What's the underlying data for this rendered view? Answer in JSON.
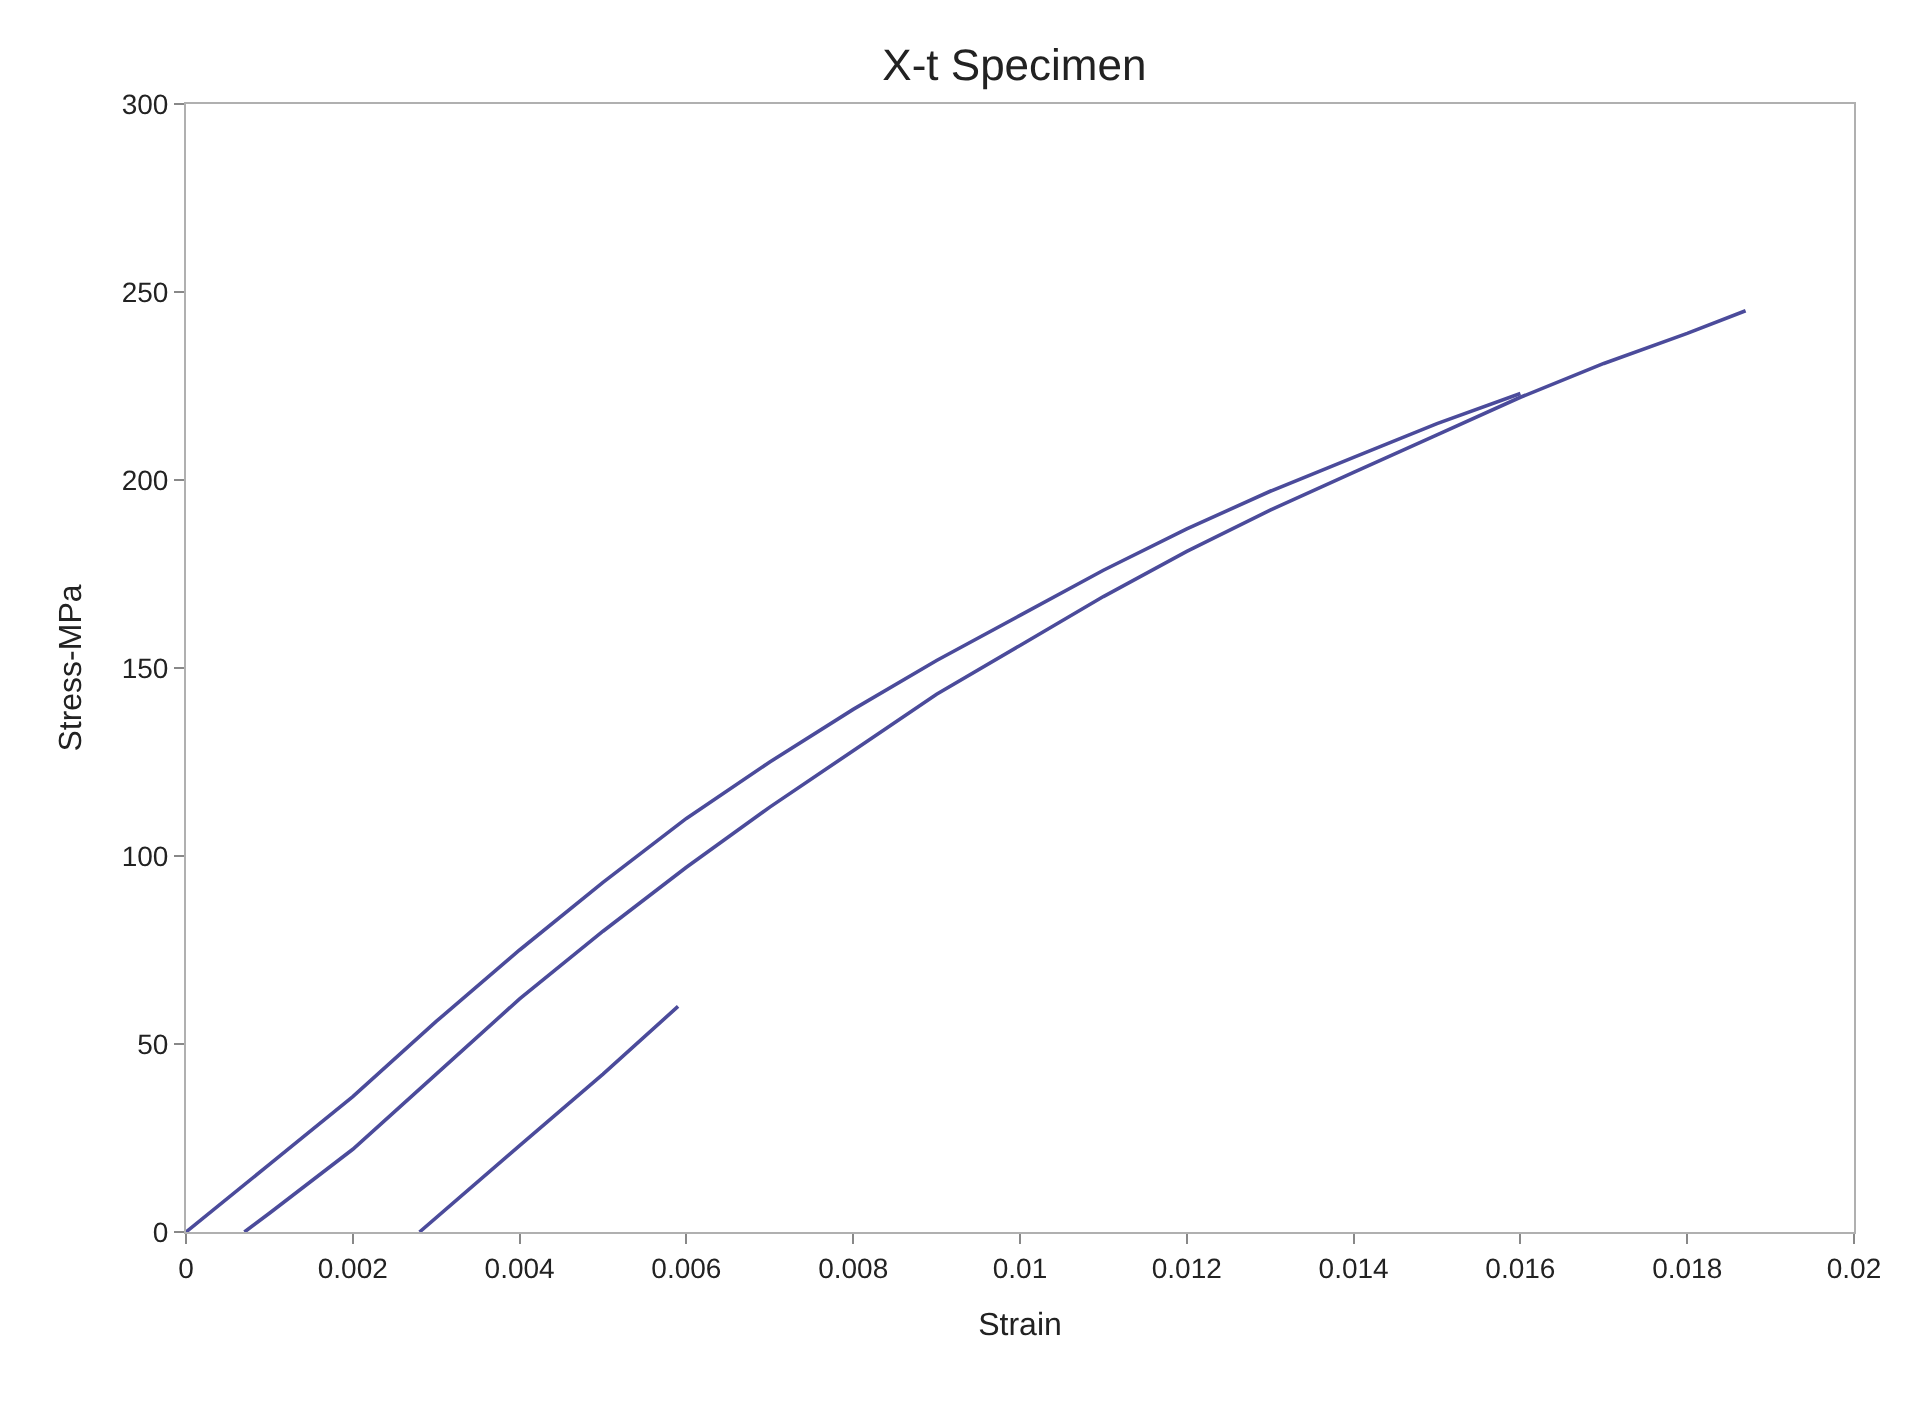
{
  "chart_data": {
    "type": "line",
    "title": "X-t Specimen",
    "xlabel": "Strain",
    "ylabel": "Stress-MPa",
    "xlim": [
      0,
      0.02
    ],
    "ylim": [
      0,
      300
    ],
    "xticks": [
      0,
      0.002,
      0.004,
      0.006,
      0.008,
      {
        "value": 0.01,
        "label": "0.01"
      },
      0.012,
      0.014,
      0.016,
      0.018,
      {
        "value": 0.02,
        "label": "0.02"
      }
    ],
    "yticks": [
      0,
      50,
      100,
      150,
      200,
      250,
      300
    ],
    "marker": "none",
    "line_style": "solid",
    "series": [
      {
        "color": "#4b4b9b",
        "x": [
          0,
          0.001,
          0.002,
          0.003,
          0.004,
          0.005,
          0.006,
          0.007,
          0.008,
          0.009,
          0.01,
          0.011,
          0.012,
          0.013,
          0.014,
          0.015,
          0.016
        ],
        "values": [
          0,
          18,
          36,
          56,
          75,
          93,
          110,
          125,
          139,
          152,
          164,
          176,
          187,
          197,
          206,
          215,
          223
        ]
      },
      {
        "color": "#4b4b9b",
        "x": [
          0.0007,
          0.001,
          0.002,
          0.003,
          0.004,
          0.005,
          0.006,
          0.007,
          0.008,
          0.009,
          0.01,
          0.011,
          0.012,
          0.013,
          0.014,
          0.015,
          0.016,
          0.017,
          0.018,
          0.0187
        ],
        "values": [
          0,
          5,
          22,
          42,
          62,
          80,
          97,
          113,
          128,
          143,
          156,
          169,
          181,
          192,
          202,
          212,
          222,
          231,
          239,
          245
        ]
      },
      {
        "color": "#4b4b9b",
        "x": [
          0.0028,
          0.004,
          0.005,
          0.0059
        ],
        "values": [
          0,
          23,
          42,
          60
        ]
      }
    ]
  }
}
